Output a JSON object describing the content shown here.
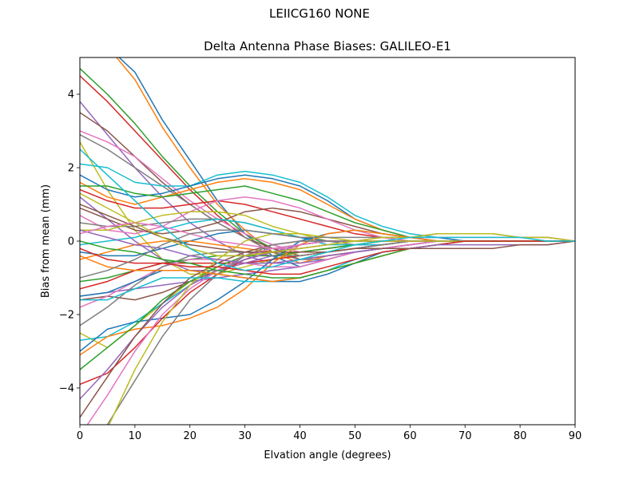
{
  "figure": {
    "suptitle": "LEIICG160       NONE"
  },
  "chart_data": {
    "type": "line",
    "title": "Delta Antenna Phase Biases: GALILEO-E1",
    "xlabel": "Elvation angle (degrees)",
    "ylabel": "Bias from mean (mm)",
    "xlim": [
      0,
      90
    ],
    "ylim": [
      -5,
      5
    ],
    "xticks": [
      0,
      10,
      20,
      30,
      40,
      50,
      60,
      70,
      80,
      90
    ],
    "yticks": [
      -4,
      -2,
      0,
      2,
      4
    ],
    "tick_labels_x": [
      "0",
      "10",
      "20",
      "30",
      "40",
      "50",
      "60",
      "70",
      "80",
      "90"
    ],
    "tick_labels_y": [
      "−4",
      "−2",
      "0",
      "2",
      "4"
    ],
    "grid": false,
    "legend": "none",
    "x": [
      0,
      5,
      10,
      15,
      20,
      25,
      30,
      35,
      40,
      45,
      50,
      55,
      60,
      65,
      70,
      75,
      80,
      85,
      90
    ],
    "palette": [
      "#1f77b4",
      "#ff7f0e",
      "#2ca02c",
      "#d62728",
      "#9467bd",
      "#8c564b",
      "#e377c2",
      "#7f7f7f",
      "#bcbd22",
      "#17becf"
    ],
    "series": [
      {
        "values": [
          5.3,
          5.3,
          4.6,
          3.3,
          2.2,
          1.1,
          0.2,
          -0.4,
          -0.7,
          -0.5,
          -0.3,
          -0.2,
          -0.1,
          0.0,
          0.0,
          0.0,
          0.0,
          0.0,
          0.0
        ]
      },
      {
        "values": [
          5.2,
          5.3,
          4.4,
          3.1,
          2.0,
          1.0,
          0.3,
          -0.3,
          -0.6,
          -0.4,
          -0.3,
          -0.2,
          -0.1,
          0.0,
          0.0,
          0.0,
          0.0,
          0.0,
          0.0
        ]
      },
      {
        "values": [
          4.7,
          4.0,
          3.2,
          2.3,
          1.5,
          0.8,
          0.2,
          -0.2,
          -0.5,
          -0.4,
          -0.3,
          -0.2,
          -0.1,
          0.0,
          0.0,
          0.0,
          0.0,
          0.0,
          0.0
        ]
      },
      {
        "values": [
          4.5,
          3.8,
          3.0,
          2.2,
          1.4,
          0.7,
          0.1,
          -0.3,
          -0.5,
          -0.4,
          -0.3,
          -0.2,
          -0.1,
          0.0,
          0.0,
          0.0,
          0.0,
          0.0,
          0.0
        ]
      },
      {
        "values": [
          3.8,
          2.9,
          2.0,
          1.2,
          0.5,
          0.0,
          -0.4,
          -0.6,
          -0.6,
          -0.5,
          -0.3,
          -0.2,
          -0.1,
          0.0,
          0.0,
          0.0,
          0.0,
          0.0,
          0.0
        ]
      },
      {
        "values": [
          3.5,
          3.0,
          2.3,
          1.6,
          1.0,
          0.5,
          0.1,
          -0.2,
          -0.4,
          -0.3,
          -0.2,
          -0.1,
          0.0,
          0.0,
          0.0,
          0.0,
          0.0,
          0.0,
          0.0
        ]
      },
      {
        "values": [
          3.0,
          2.7,
          2.3,
          1.7,
          1.1,
          0.6,
          0.2,
          -0.1,
          -0.3,
          -0.3,
          -0.2,
          -0.1,
          0.0,
          0.0,
          0.0,
          0.0,
          0.0,
          0.0,
          0.0
        ]
      },
      {
        "values": [
          2.9,
          2.5,
          2.0,
          1.5,
          1.0,
          0.5,
          0.1,
          -0.3,
          -0.5,
          -0.5,
          -0.3,
          -0.2,
          -0.1,
          0.0,
          0.0,
          0.0,
          0.0,
          0.0,
          0.0
        ]
      },
      {
        "values": [
          2.7,
          1.4,
          0.3,
          -0.5,
          -0.9,
          -0.9,
          -0.7,
          -0.5,
          -0.3,
          -0.2,
          -0.1,
          0.0,
          0.0,
          0.0,
          0.0,
          0.0,
          0.0,
          0.0,
          0.0
        ]
      },
      {
        "values": [
          2.1,
          2.0,
          1.6,
          1.5,
          1.5,
          1.8,
          1.9,
          1.8,
          1.6,
          1.2,
          0.7,
          0.4,
          0.2,
          0.1,
          0.0,
          0.0,
          0.0,
          0.0,
          0.0
        ]
      },
      {
        "values": [
          1.8,
          1.4,
          1.2,
          1.3,
          1.5,
          1.7,
          1.8,
          1.7,
          1.5,
          1.1,
          0.6,
          0.3,
          0.1,
          0.1,
          0.0,
          0.0,
          0.0,
          0.0,
          0.0
        ]
      },
      {
        "values": [
          1.6,
          1.2,
          1.0,
          1.2,
          1.4,
          1.6,
          1.7,
          1.6,
          1.4,
          1.0,
          0.6,
          0.3,
          0.1,
          0.0,
          0.0,
          0.0,
          0.0,
          0.0,
          0.0
        ]
      },
      {
        "values": [
          1.5,
          1.5,
          1.3,
          1.2,
          1.3,
          1.4,
          1.5,
          1.3,
          1.1,
          0.8,
          0.5,
          0.3,
          0.1,
          0.0,
          0.0,
          0.0,
          0.0,
          0.0,
          0.0
        ]
      },
      {
        "values": [
          1.4,
          1.1,
          0.9,
          0.9,
          1.0,
          1.1,
          1.0,
          0.8,
          0.6,
          0.4,
          0.2,
          0.1,
          0.0,
          0.0,
          0.0,
          0.0,
          0.0,
          0.0,
          0.0
        ]
      },
      {
        "values": [
          1.2,
          0.6,
          0.0,
          -0.5,
          -0.8,
          -0.8,
          -0.6,
          -0.4,
          -0.3,
          -0.2,
          -0.1,
          0.0,
          0.0,
          0.0,
          0.0,
          0.0,
          0.0,
          0.0,
          0.0
        ]
      },
      {
        "values": [
          0.9,
          0.6,
          0.3,
          0.2,
          0.3,
          0.5,
          0.8,
          0.9,
          0.8,
          0.6,
          0.4,
          0.2,
          0.1,
          0.0,
          0.0,
          0.0,
          0.0,
          0.0,
          0.0
        ]
      },
      {
        "values": [
          0.7,
          0.3,
          0.2,
          0.4,
          0.8,
          1.1,
          1.2,
          1.1,
          0.9,
          0.6,
          0.3,
          0.1,
          0.0,
          0.0,
          0.0,
          0.0,
          0.0,
          0.0,
          0.0
        ]
      },
      {
        "values": [
          0.5,
          0.4,
          0.4,
          0.5,
          0.6,
          0.6,
          0.5,
          0.3,
          0.1,
          0.0,
          -0.1,
          -0.1,
          0.0,
          0.0,
          0.0,
          0.0,
          0.0,
          0.0,
          0.0
        ]
      },
      {
        "values": [
          0.3,
          0.3,
          0.5,
          0.7,
          0.8,
          0.8,
          0.7,
          0.4,
          0.2,
          0.0,
          0.0,
          0.0,
          0.0,
          0.0,
          0.0,
          0.0,
          0.0,
          0.0,
          0.0
        ]
      },
      {
        "values": [
          -0.1,
          0.0,
          0.1,
          0.3,
          0.5,
          0.6,
          0.5,
          0.3,
          0.1,
          -0.1,
          -0.1,
          -0.1,
          0.0,
          0.0,
          0.0,
          0.0,
          0.0,
          0.0,
          0.0
        ]
      },
      {
        "values": [
          -0.3,
          -0.4,
          -0.4,
          -0.2,
          0.0,
          0.2,
          0.3,
          0.2,
          0.1,
          0.0,
          0.0,
          0.0,
          0.0,
          0.0,
          0.0,
          0.0,
          0.0,
          0.0,
          0.0
        ]
      },
      {
        "values": [
          -0.5,
          -0.3,
          -0.1,
          0.0,
          0.0,
          -0.1,
          -0.2,
          -0.3,
          -0.3,
          -0.2,
          -0.1,
          0.0,
          0.0,
          0.0,
          0.0,
          0.0,
          0.0,
          0.0,
          0.0
        ]
      },
      {
        "values": [
          -1.1,
          -1.0,
          -0.8,
          -0.6,
          -0.5,
          -0.4,
          -0.4,
          -0.4,
          -0.3,
          -0.2,
          -0.1,
          0.0,
          0.0,
          0.0,
          0.0,
          0.0,
          0.0,
          0.0,
          0.0
        ]
      },
      {
        "values": [
          -1.3,
          -1.1,
          -0.8,
          -0.6,
          -0.6,
          -0.6,
          -0.6,
          -0.5,
          -0.4,
          -0.3,
          -0.2,
          -0.1,
          0.0,
          0.0,
          0.0,
          0.0,
          0.0,
          0.0,
          0.0
        ]
      },
      {
        "values": [
          -1.5,
          -1.4,
          -1.3,
          -1.2,
          -1.1,
          -1.0,
          -0.9,
          -0.8,
          -0.7,
          -0.5,
          -0.3,
          -0.2,
          -0.1,
          0.0,
          0.0,
          0.0,
          0.0,
          0.0,
          0.0
        ]
      },
      {
        "values": [
          -1.6,
          -1.5,
          -1.6,
          -1.4,
          -1.1,
          -0.8,
          -0.5,
          -0.3,
          -0.1,
          0.0,
          0.0,
          0.0,
          0.0,
          0.0,
          0.0,
          0.0,
          0.0,
          0.0,
          0.0
        ]
      },
      {
        "values": [
          -1.8,
          -1.5,
          -1.1,
          -0.7,
          -0.5,
          -0.5,
          -0.6,
          -0.7,
          -0.7,
          -0.5,
          -0.3,
          -0.2,
          -0.1,
          0.0,
          0.0,
          0.0,
          0.0,
          0.0,
          0.0
        ]
      },
      {
        "values": [
          -2.3,
          -1.8,
          -1.2,
          -0.7,
          -0.4,
          -0.3,
          -0.3,
          -0.4,
          -0.4,
          -0.3,
          -0.2,
          -0.1,
          0.0,
          0.0,
          0.0,
          0.0,
          0.0,
          0.0,
          0.0
        ]
      },
      {
        "values": [
          -2.5,
          -2.9,
          -2.3,
          -1.7,
          -1.1,
          -0.7,
          -0.4,
          -0.3,
          -0.2,
          -0.1,
          0.0,
          0.0,
          0.0,
          0.0,
          0.0,
          0.0,
          0.0,
          0.0,
          0.0
        ]
      },
      {
        "values": [
          -2.7,
          -2.6,
          -2.2,
          -1.7,
          -1.2,
          -0.8,
          -0.5,
          -0.3,
          -0.2,
          -0.1,
          0.0,
          0.0,
          0.0,
          0.0,
          0.0,
          0.0,
          0.0,
          0.0,
          0.0
        ]
      },
      {
        "values": [
          -3.0,
          -2.4,
          -2.2,
          -2.1,
          -2.0,
          -1.6,
          -1.1,
          -0.5,
          0.0,
          0.2,
          0.3,
          0.2,
          0.1,
          0.0,
          0.0,
          0.0,
          0.0,
          0.0,
          0.0
        ]
      },
      {
        "values": [
          -3.1,
          -2.6,
          -2.4,
          -2.3,
          -2.1,
          -1.8,
          -1.3,
          -0.6,
          -0.1,
          0.2,
          0.3,
          0.2,
          0.1,
          0.0,
          0.0,
          0.0,
          0.0,
          0.0,
          0.0
        ]
      },
      {
        "values": [
          -3.5,
          -2.9,
          -2.3,
          -1.6,
          -1.1,
          -0.7,
          -0.4,
          -0.2,
          -0.1,
          0.0,
          0.0,
          0.0,
          0.0,
          0.0,
          0.0,
          0.0,
          0.0,
          0.0,
          0.0
        ]
      },
      {
        "values": [
          -3.9,
          -3.6,
          -2.9,
          -2.1,
          -1.4,
          -0.9,
          -0.5,
          -0.3,
          -0.1,
          0.0,
          0.0,
          0.0,
          0.0,
          0.0,
          0.0,
          0.0,
          0.0,
          0.0,
          0.0
        ]
      },
      {
        "values": [
          -4.3,
          -3.5,
          -2.6,
          -1.8,
          -1.2,
          -0.8,
          -0.5,
          -0.3,
          -0.1,
          0.0,
          0.0,
          0.0,
          0.0,
          0.0,
          0.0,
          0.0,
          0.0,
          0.0,
          0.0
        ]
      },
      {
        "values": [
          -4.8,
          -3.7,
          -2.6,
          -1.7,
          -1.0,
          -0.6,
          -0.3,
          -0.1,
          0.0,
          0.0,
          0.0,
          0.0,
          0.0,
          0.0,
          0.0,
          0.0,
          0.0,
          0.0,
          0.0
        ]
      },
      {
        "values": [
          -5.3,
          -4.2,
          -3.0,
          -2.0,
          -1.3,
          -0.8,
          -0.4,
          -0.2,
          -0.1,
          0.0,
          0.0,
          0.0,
          0.0,
          0.0,
          0.0,
          0.0,
          0.0,
          0.0,
          0.0
        ]
      },
      {
        "values": [
          -5.6,
          -5.0,
          -3.8,
          -2.6,
          -1.6,
          -0.9,
          -0.4,
          -0.1,
          0.0,
          0.0,
          0.0,
          0.0,
          0.0,
          0.0,
          0.0,
          0.0,
          0.0,
          0.0,
          0.0
        ]
      },
      {
        "values": [
          -5.5,
          -5.1,
          -3.5,
          -2.2,
          -1.2,
          -0.5,
          0.0,
          0.2,
          0.2,
          0.1,
          0.0,
          0.0,
          0.0,
          0.0,
          0.0,
          0.0,
          0.0,
          0.0,
          0.0
        ]
      },
      {
        "values": [
          -1.6,
          -1.6,
          -1.3,
          -1.0,
          -1.0,
          -1.0,
          -1.1,
          -1.1,
          -1.0,
          -0.8,
          -0.5,
          -0.3,
          -0.2,
          -0.1,
          0.0,
          0.0,
          0.0,
          0.0,
          0.0
        ]
      },
      {
        "values": [
          -1.5,
          -1.4,
          -1.1,
          -0.8,
          -0.8,
          -0.9,
          -1.0,
          -1.1,
          -1.1,
          -0.9,
          -0.6,
          -0.3,
          -0.2,
          -0.1,
          0.0,
          0.0,
          0.0,
          0.0,
          0.0
        ]
      },
      {
        "values": [
          -0.4,
          -0.7,
          -0.8,
          -0.8,
          -0.8,
          -0.9,
          -1.0,
          -1.1,
          -1.0,
          -0.8,
          -0.6,
          -0.4,
          -0.2,
          -0.1,
          0.0,
          0.0,
          0.0,
          0.0,
          0.0
        ]
      },
      {
        "values": [
          0.0,
          -0.2,
          -0.3,
          -0.5,
          -0.6,
          -0.8,
          -0.9,
          -1.0,
          -1.0,
          -0.8,
          -0.6,
          -0.4,
          -0.2,
          -0.1,
          0.0,
          0.0,
          0.0,
          0.0,
          0.0
        ]
      },
      {
        "values": [
          -0.2,
          -0.5,
          -0.6,
          -0.6,
          -0.7,
          -0.7,
          -0.8,
          -0.9,
          -0.9,
          -0.7,
          -0.5,
          -0.3,
          -0.2,
          -0.1,
          0.0,
          0.0,
          0.0,
          0.0,
          0.0
        ]
      },
      {
        "values": [
          0.3,
          0.1,
          -0.1,
          -0.2,
          -0.4,
          -0.5,
          -0.6,
          -0.6,
          -0.5,
          -0.4,
          -0.3,
          -0.2,
          -0.2,
          -0.1,
          -0.1,
          -0.1,
          -0.1,
          -0.1,
          0.0
        ]
      },
      {
        "values": [
          1.0,
          0.7,
          0.4,
          0.1,
          -0.1,
          -0.2,
          -0.3,
          -0.3,
          -0.3,
          -0.3,
          -0.2,
          -0.2,
          -0.2,
          -0.2,
          -0.2,
          -0.2,
          -0.1,
          -0.1,
          0.0
        ]
      },
      {
        "values": [
          0.2,
          0.4,
          0.5,
          0.4,
          0.2,
          0.0,
          -0.1,
          -0.2,
          -0.2,
          -0.1,
          0.0,
          0.1,
          0.1,
          0.1,
          0.1,
          0.1,
          0.1,
          0.1,
          0.0
        ]
      },
      {
        "values": [
          -1.0,
          -0.8,
          -0.5,
          -0.1,
          0.2,
          0.3,
          0.3,
          0.2,
          0.1,
          0.1,
          0.1,
          0.1,
          0.1,
          0.2,
          0.2,
          0.2,
          0.1,
          0.1,
          0.0
        ]
      },
      {
        "values": [
          1.3,
          0.9,
          0.5,
          0.1,
          -0.2,
          -0.4,
          -0.4,
          -0.3,
          -0.2,
          -0.1,
          0.0,
          0.1,
          0.1,
          0.2,
          0.2,
          0.2,
          0.1,
          0.1,
          0.0
        ]
      },
      {
        "values": [
          2.5,
          1.8,
          1.1,
          0.4,
          -0.2,
          -0.6,
          -0.8,
          -0.7,
          -0.5,
          -0.3,
          -0.1,
          0.0,
          0.1,
          0.1,
          0.1,
          0.1,
          0.1,
          0.0,
          0.0
        ]
      }
    ]
  }
}
